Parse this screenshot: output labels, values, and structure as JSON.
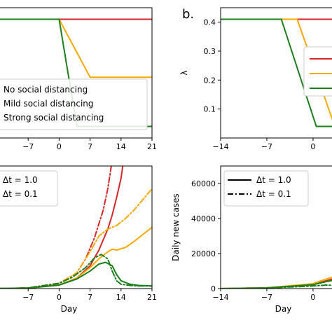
{
  "colors": {
    "none": "#d62728",
    "mild": "#f5a800",
    "strong": "#1b7e1b"
  },
  "chart_data": [
    {
      "type": "line",
      "panel": "top-left",
      "xlim": [
        -14,
        21
      ],
      "ylim": [
        0,
        0.45
      ],
      "xticks": [
        -7,
        0,
        7,
        14,
        21
      ],
      "tick_labels": [
        "−7",
        "0",
        "7",
        "14",
        "21"
      ],
      "legend": [
        "No social distancing",
        "Mild social distancing",
        "Strong social distancing"
      ],
      "series": [
        {
          "name": "No social distancing",
          "color": "#d62728",
          "x": [
            -14,
            21
          ],
          "y": [
            0.41,
            0.41
          ]
        },
        {
          "name": "Mild social distancing",
          "color": "#f5a800",
          "x": [
            -14,
            0,
            7,
            21
          ],
          "y": [
            0.41,
            0.41,
            0.21,
            0.21
          ]
        },
        {
          "name": "Strong social distancing",
          "color": "#1b7e1b",
          "x": [
            -14,
            0,
            4,
            21
          ],
          "y": [
            0.41,
            0.41,
            0.04,
            0.04
          ]
        }
      ]
    },
    {
      "type": "line",
      "panel": "top-right",
      "panel_label": "b.",
      "ylabel": "λ",
      "xlim": [
        -14,
        3.3
      ],
      "ylim": [
        0,
        0.45
      ],
      "xticks": [
        -14,
        -7,
        0
      ],
      "xtick_labels": [
        "−14",
        "−7",
        "0"
      ],
      "yticks": [
        0.1,
        0.2,
        0.3,
        0.4
      ],
      "ytick_labels": [
        "0.1",
        "0.2",
        "0.3",
        "0.4"
      ],
      "series": [
        {
          "color": "#d62728",
          "x": [
            -14,
            3.3
          ],
          "y": [
            0.41,
            0.41
          ]
        },
        {
          "color": "#f5a800",
          "x": [
            -14,
            -2.4,
            3.3
          ],
          "y": [
            0.41,
            0.41,
            0.04
          ]
        },
        {
          "color": "#1b7e1b",
          "x": [
            -14,
            -4.8,
            0.5,
            3.3
          ],
          "y": [
            0.41,
            0.41,
            0.04,
            0.04
          ]
        }
      ]
    },
    {
      "type": "line",
      "panel": "bottom-left",
      "xlabel": "Day",
      "xlim": [
        -14,
        21
      ],
      "ylim": [
        0,
        70000
      ],
      "xticks": [
        -7,
        0,
        7,
        14,
        21
      ],
      "tick_labels": [
        "−7",
        "0",
        "7",
        "14",
        "21"
      ],
      "legend": [
        "Δt = 1.0",
        "Δt = 0.1"
      ],
      "series": [
        {
          "name": "No social distancing, Δt = 1.0",
          "color": "#d62728",
          "style": "solid",
          "x": [
            -14,
            -7,
            0,
            4,
            7,
            9,
            11,
            12,
            13,
            14,
            14.4
          ],
          "y": [
            0,
            300,
            2000,
            6000,
            13000,
            22000,
            34000,
            42000,
            52000,
            63000,
            70000
          ]
        },
        {
          "name": "No social distancing, Δt = 0.1",
          "color": "#d62728",
          "style": "dashdot",
          "x": [
            -14,
            -7,
            0,
            4,
            6,
            8,
            10,
            11,
            11.8
          ],
          "y": [
            0,
            400,
            3000,
            9000,
            17000,
            29000,
            45000,
            57000,
            70000
          ]
        },
        {
          "name": "Mild social distancing, Δt = 1.0",
          "color": "#f5a800",
          "style": "solid",
          "x": [
            -14,
            -7,
            0,
            4,
            7,
            9,
            11,
            12,
            13,
            15,
            17,
            19,
            21
          ],
          "y": [
            0,
            300,
            2000,
            6000,
            12000,
            17000,
            21000,
            22500,
            22000,
            23500,
            27000,
            31000,
            35000
          ]
        },
        {
          "name": "Mild social distancing, Δt = 0.1",
          "color": "#f5a800",
          "style": "dashdot",
          "x": [
            -14,
            -7,
            0,
            4,
            7,
            9,
            11,
            13,
            15,
            17,
            19,
            21
          ],
          "y": [
            0,
            400,
            3000,
            9000,
            21000,
            30000,
            34000,
            36000,
            40000,
            45000,
            51000,
            57000
          ]
        },
        {
          "name": "Strong social distancing, Δt = 1.0",
          "color": "#1b7e1b",
          "style": "solid",
          "x": [
            -14,
            -7,
            0,
            4,
            7,
            9,
            10.5,
            12,
            13,
            14,
            16,
            18,
            21
          ],
          "y": [
            0,
            300,
            2000,
            5500,
            10000,
            14000,
            15000,
            13000,
            8000,
            4500,
            2500,
            1800,
            1500
          ]
        },
        {
          "name": "Strong social distancing, Δt = 0.1",
          "color": "#1b7e1b",
          "style": "dashdot",
          "x": [
            -14,
            -7,
            0,
            3,
            6,
            8,
            9.5,
            11,
            12,
            13,
            14,
            16,
            18,
            21
          ],
          "y": [
            0,
            400,
            3000,
            6500,
            12000,
            17500,
            19500,
            17000,
            10000,
            4500,
            2500,
            1800,
            1500,
            1500
          ]
        }
      ]
    },
    {
      "type": "line",
      "panel": "bottom-right",
      "xlabel": "Day",
      "ylabel": "Daily new cases",
      "xlim": [
        -14,
        3.3
      ],
      "ylim": [
        0,
        70000
      ],
      "xticks": [
        -14,
        -7,
        0
      ],
      "xtick_labels": [
        "−14",
        "−7",
        "0"
      ],
      "yticks": [
        0,
        20000,
        40000,
        60000
      ],
      "ytick_labels": [
        "0",
        "20000",
        "40000",
        "60000"
      ],
      "legend": [
        "Δt = 1.0",
        "Δt = 0.1"
      ],
      "series": [
        {
          "color": "#d62728",
          "style": "solid",
          "x": [
            -14,
            -7,
            0,
            2,
            3.3
          ],
          "y": [
            0,
            400,
            2500,
            4500,
            6000
          ]
        },
        {
          "color": "#f5a800",
          "style": "solid",
          "x": [
            -14,
            -7,
            0,
            2,
            3.3
          ],
          "y": [
            0,
            400,
            2800,
            5500,
            7000
          ]
        },
        {
          "color": "#f5a800",
          "style": "dashdot",
          "x": [
            -14,
            -7,
            0,
            2,
            3.3
          ],
          "y": [
            0,
            500,
            2500,
            4000,
            4500
          ]
        },
        {
          "color": "#1b7e1b",
          "style": "solid",
          "x": [
            -14,
            -7,
            0,
            2,
            3.3
          ],
          "y": [
            0,
            400,
            2200,
            4000,
            5000
          ]
        },
        {
          "color": "#1b7e1b",
          "style": "dashdot",
          "x": [
            -14,
            -7,
            0,
            2,
            3.3
          ],
          "y": [
            0,
            300,
            1500,
            2000,
            1800
          ]
        }
      ]
    }
  ]
}
